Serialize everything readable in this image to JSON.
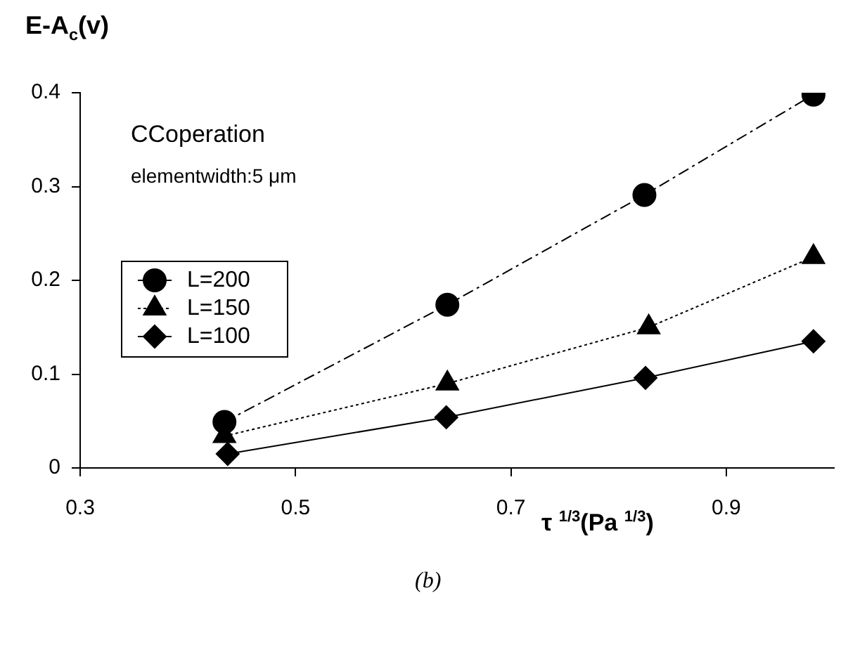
{
  "chart_data": {
    "type": "line",
    "ylabel": "E-A$_{c}$(v)",
    "xlabel": "τ $^{1/3}$(Pa $^{1/3}$)",
    "annotations": [
      "CCoperation",
      "elementwidth:5 μm",
      "(b)"
    ],
    "xlim": [
      0.3,
      1.0
    ],
    "xticks": [
      0.3,
      0.5,
      0.7,
      0.9
    ],
    "ylim": [
      0,
      0.4
    ],
    "yticks": [
      0,
      0.1,
      0.2,
      0.3,
      0.4
    ],
    "grid": false,
    "legend": "left",
    "series": [
      {
        "name": "L=200",
        "color": "#000000",
        "marker": "circle",
        "line_style": "dashed",
        "x": [
          0.434,
          0.641,
          0.824,
          0.981
        ],
        "values": [
          0.049,
          0.174,
          0.291,
          0.398
        ]
      },
      {
        "name": "L=150",
        "color": "#000000",
        "marker": "triangle",
        "line_style": "dotted",
        "x": [
          0.434,
          0.641,
          0.828,
          0.981
        ],
        "values": [
          0.034,
          0.09,
          0.15,
          0.225
        ]
      },
      {
        "name": "L=100",
        "color": "#000000",
        "marker": "diamond",
        "line_style": "solid",
        "x": [
          0.437,
          0.64,
          0.825,
          0.981
        ],
        "values": [
          0.015,
          0.054,
          0.096,
          0.135
        ]
      }
    ]
  }
}
